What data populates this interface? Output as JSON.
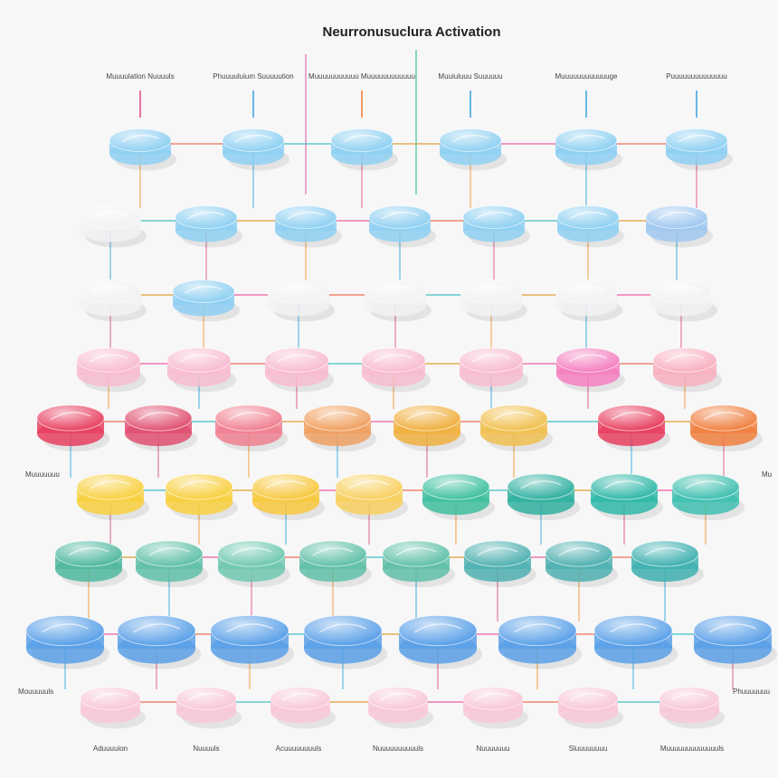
{
  "title": "Neurronusuclura Activation",
  "top_labels": [
    "Muuuulation Nuuuuls",
    "Phuuuuluium Suuuuution",
    "Muuuuuuuuuuu Muuuuuuuuuuuu",
    "Muuiuluuu Suuuuuu",
    "Muuuuuuuuuuuuge",
    "Puuuuuuuuuuuuuu"
  ],
  "side_labels": {
    "left_upper": "Muuuuuuu",
    "right_upper": "Mu",
    "left_lower": "Mouuuuuls",
    "right_lower": "Phuuuuuuu"
  },
  "bottom_labels": [
    "Aduuuuion",
    "Nuuuuls",
    "Acuuuuuuuuls",
    "Nuuuuuuuuuuls",
    "Nuuuuuuu",
    "Sluuuuuuuu",
    "Muuuuuuuuuuuuuls"
  ]
}
